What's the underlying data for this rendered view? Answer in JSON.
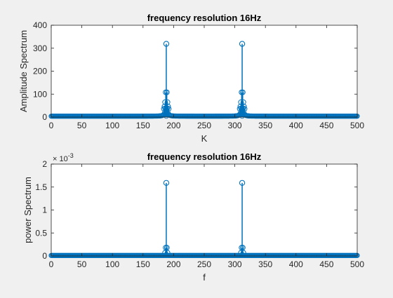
{
  "figure": {
    "background_color": "#f0f0f0",
    "axes_color": "#ffffff",
    "stem_color": "#0072bd",
    "axis_color": "#262626"
  },
  "chart_data": [
    {
      "type": "stem",
      "title": "frequency resolution 16Hz",
      "xlabel": "K",
      "ylabel": "Amplitude Spectrum",
      "xlim": [
        0,
        500
      ],
      "ylim": [
        0,
        400
      ],
      "xticks": [
        0,
        50,
        100,
        150,
        200,
        250,
        300,
        350,
        400,
        450,
        500
      ],
      "xtick_labels": [
        "0",
        "50",
        "100",
        "150",
        "200",
        "250",
        "300",
        "350",
        "400",
        "450",
        "500"
      ],
      "yticks": [
        0,
        100,
        200,
        300,
        400
      ],
      "ytick_labels": [
        "0",
        "100",
        "200",
        "300",
        "400"
      ],
      "exponent_label": "",
      "grid": false,
      "stems": [
        {
          "x": 188,
          "y": 319
        },
        {
          "x": 312,
          "y": 319
        }
      ],
      "side_stems": [
        {
          "x": 187,
          "y": 108
        },
        {
          "x": 189,
          "y": 108
        },
        {
          "x": 186,
          "y": 65
        },
        {
          "x": 190,
          "y": 65
        },
        {
          "x": 185,
          "y": 46
        },
        {
          "x": 191,
          "y": 46
        },
        {
          "x": 184,
          "y": 36
        },
        {
          "x": 192,
          "y": 36
        },
        {
          "x": 311,
          "y": 108
        },
        {
          "x": 313,
          "y": 108
        },
        {
          "x": 310,
          "y": 65
        },
        {
          "x": 314,
          "y": 65
        },
        {
          "x": 309,
          "y": 46
        },
        {
          "x": 315,
          "y": 46
        },
        {
          "x": 308,
          "y": 36
        },
        {
          "x": 316,
          "y": 36
        }
      ],
      "baseline_level": 4,
      "baseline_curve": {
        "description": "dense stems near zero with leakage growing toward the peaks",
        "peaks": [
          188,
          312
        ],
        "scale": 320
      }
    },
    {
      "type": "stem",
      "title": "frequency resolution 16Hz",
      "xlabel": "f",
      "ylabel": "power Spectrum",
      "xlim": [
        0,
        500
      ],
      "ylim": [
        0,
        0.002
      ],
      "xticks": [
        0,
        50,
        100,
        150,
        200,
        250,
        300,
        350,
        400,
        450,
        500
      ],
      "xtick_labels": [
        "0",
        "50",
        "100",
        "150",
        "200",
        "250",
        "300",
        "350",
        "400",
        "450",
        "500"
      ],
      "yticks": [
        0,
        0.0005,
        0.001,
        0.0015,
        0.002
      ],
      "ytick_labels": [
        "0",
        "0.5",
        "1",
        "1.5",
        "2"
      ],
      "exponent_base": "× 10",
      "exponent_power": "-3",
      "grid": false,
      "stems": [
        {
          "x": 188,
          "y": 0.00159
        },
        {
          "x": 312,
          "y": 0.00159
        }
      ],
      "side_stems": [
        {
          "x": 187,
          "y": 0.00018
        },
        {
          "x": 189,
          "y": 0.00018
        },
        {
          "x": 186,
          "y": 7e-05
        },
        {
          "x": 190,
          "y": 7e-05
        },
        {
          "x": 311,
          "y": 0.00018
        },
        {
          "x": 313,
          "y": 0.00018
        },
        {
          "x": 310,
          "y": 7e-05
        },
        {
          "x": 314,
          "y": 7e-05
        }
      ],
      "baseline_level": 1e-05,
      "baseline_curve": {
        "description": "dense stems near zero",
        "peaks": [
          188,
          312
        ],
        "scale": 1.2e-06
      }
    }
  ]
}
